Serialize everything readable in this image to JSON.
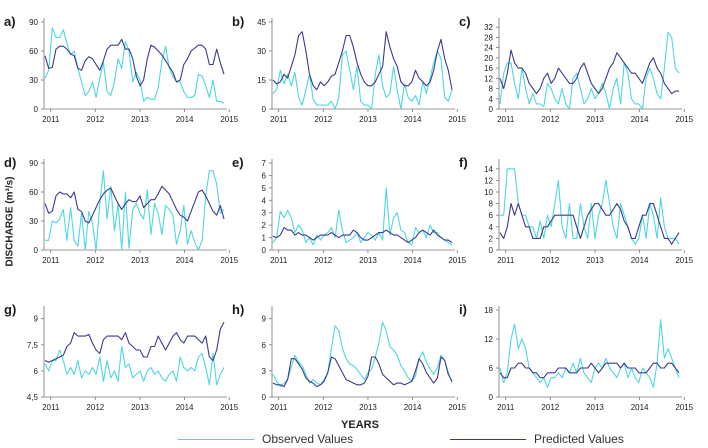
{
  "figure": {
    "ylabel": "DISCHARGE (m³/s)",
    "xlabel": "YEARS",
    "legend": [
      {
        "label": "Observed Values",
        "color": "#4fd6e0"
      },
      {
        "label": "Predicted Values",
        "color": "#3b3a8f"
      }
    ]
  },
  "chart_data": [
    {
      "type": "line",
      "panel": "a)",
      "x_ticks": [
        "2011",
        "2012",
        "2013",
        "2014",
        "2015"
      ],
      "y_ticks": [
        "0",
        "30",
        "60",
        "90"
      ],
      "ylim": [
        0,
        90
      ],
      "series": [
        {
          "name": "Observed Values",
          "values": [
            32,
            40,
            84,
            74,
            74,
            82,
            68,
            56,
            60,
            42,
            28,
            14,
            18,
            28,
            12,
            32,
            48,
            18,
            14,
            28,
            52,
            42,
            70,
            60,
            28,
            38,
            30,
            8,
            12,
            10,
            10,
            22,
            50,
            65,
            42,
            34,
            28,
            28,
            18,
            12,
            12,
            14,
            36,
            34,
            24,
            12,
            30,
            8,
            8,
            6
          ]
        },
        {
          "name": "Predicted Values",
          "values": [
            55,
            42,
            43,
            62,
            65,
            65,
            62,
            57,
            55,
            42,
            40,
            50,
            54,
            52,
            46,
            40,
            50,
            62,
            66,
            66,
            66,
            72,
            62,
            62,
            52,
            34,
            24,
            30,
            52,
            66,
            64,
            60,
            56,
            50,
            44,
            38,
            28,
            30,
            46,
            52,
            60,
            63,
            66,
            66,
            62,
            46,
            46,
            62,
            48,
            36
          ]
        }
      ]
    },
    {
      "type": "line",
      "panel": "b)",
      "x_ticks": [
        "2011",
        "2012",
        "2013",
        "2014",
        "2015"
      ],
      "y_ticks": [
        "0",
        "15",
        "30",
        "45"
      ],
      "ylim": [
        0,
        45
      ],
      "series": [
        {
          "name": "Observed Values",
          "values": [
            8,
            10,
            20,
            13,
            18,
            12,
            19,
            6,
            2,
            10,
            18,
            5,
            2,
            2,
            2,
            2,
            4,
            0,
            6,
            28,
            30,
            20,
            10,
            22,
            4,
            2,
            2,
            0,
            18,
            28,
            12,
            6,
            8,
            22,
            10,
            0,
            13,
            6,
            4,
            7,
            2,
            14,
            8,
            16,
            24,
            30,
            26,
            6,
            4,
            10
          ]
        },
        {
          "name": "Predicted Values",
          "values": [
            15,
            13,
            14,
            18,
            16,
            22,
            28,
            38,
            40,
            30,
            18,
            12,
            10,
            14,
            12,
            14,
            17,
            18,
            24,
            30,
            38,
            38,
            32,
            24,
            18,
            14,
            12,
            12,
            14,
            18,
            22,
            40,
            32,
            26,
            22,
            14,
            12,
            12,
            14,
            20,
            16,
            14,
            12,
            14,
            20,
            30,
            36,
            26,
            20,
            10
          ]
        }
      ]
    },
    {
      "type": "line",
      "panel": "c)",
      "x_ticks": [
        "2011",
        "2012",
        "2013",
        "2014",
        "2015"
      ],
      "y_ticks": [
        "0",
        "4",
        "8",
        "12",
        "16",
        "20",
        "24",
        "28",
        "32"
      ],
      "ylim": [
        0,
        34
      ],
      "series": [
        {
          "name": "Observed Values",
          "values": [
            2,
            14,
            18,
            18,
            10,
            4,
            16,
            8,
            2,
            6,
            2,
            2,
            1,
            10,
            8,
            4,
            2,
            8,
            2,
            0,
            12,
            14,
            8,
            2,
            4,
            8,
            4,
            6,
            10,
            6,
            0,
            8,
            12,
            2,
            18,
            14,
            4,
            2,
            2,
            0,
            12,
            16,
            12,
            6,
            4,
            16,
            30,
            28,
            16,
            14
          ]
        },
        {
          "name": "Predicted Values",
          "values": [
            12,
            8,
            14,
            23,
            18,
            16,
            16,
            14,
            10,
            8,
            6,
            8,
            12,
            14,
            10,
            12,
            16,
            14,
            12,
            10,
            10,
            12,
            16,
            18,
            14,
            10,
            8,
            6,
            8,
            12,
            16,
            18,
            22,
            20,
            18,
            16,
            14,
            14,
            12,
            10,
            14,
            18,
            20,
            16,
            14,
            10,
            8,
            6,
            7,
            7
          ]
        }
      ]
    },
    {
      "type": "line",
      "panel": "d)",
      "x_ticks": [
        "2011",
        "2012",
        "2013",
        "2014",
        "2015"
      ],
      "y_ticks": [
        "0",
        "30",
        "60",
        "90"
      ],
      "ylim": [
        0,
        90
      ],
      "series": [
        {
          "name": "Observed Values",
          "values": [
            10,
            10,
            30,
            28,
            32,
            42,
            10,
            44,
            10,
            4,
            38,
            0,
            40,
            28,
            0,
            48,
            82,
            32,
            66,
            20,
            48,
            0,
            60,
            2,
            42,
            48,
            38,
            32,
            62,
            16,
            48,
            38,
            16,
            46,
            42,
            36,
            6,
            20,
            46,
            6,
            20,
            8,
            0,
            10,
            56,
            82,
            82,
            68,
            38,
            42
          ]
        },
        {
          "name": "Predicted Values",
          "values": [
            48,
            38,
            40,
            56,
            60,
            58,
            58,
            54,
            60,
            42,
            40,
            30,
            28,
            36,
            44,
            52,
            58,
            62,
            64,
            56,
            48,
            42,
            48,
            52,
            50,
            50,
            56,
            44,
            48,
            52,
            52,
            58,
            66,
            62,
            58,
            50,
            42,
            36,
            34,
            30,
            40,
            50,
            60,
            62,
            56,
            48,
            40,
            36,
            46,
            32
          ]
        }
      ]
    },
    {
      "type": "line",
      "panel": "e)",
      "x_ticks": [
        "2011",
        "2012",
        "2013",
        "2014",
        "2015"
      ],
      "y_ticks": [
        "0",
        "1",
        "2",
        "3",
        "4",
        "5",
        "6",
        "7"
      ],
      "ylim": [
        0,
        7
      ],
      "series": [
        {
          "name": "Observed Values",
          "values": [
            0.6,
            1.0,
            3.1,
            2.6,
            3.2,
            2.6,
            1.4,
            2.0,
            1.6,
            0.6,
            1.0,
            0.4,
            1.2,
            0.8,
            1.2,
            1.4,
            1.8,
            1.0,
            3.2,
            1.6,
            0.6,
            0.8,
            1.0,
            1.4,
            0.6,
            1.0,
            1.4,
            1.2,
            0.8,
            1.4,
            0.8,
            5.0,
            1.2,
            2.6,
            3.0,
            1.6,
            1.4,
            0.6,
            0.4,
            1.8,
            1.4,
            1.6,
            1.0,
            2.0,
            1.4,
            1.4,
            1.0,
            0.8,
            0.6,
            0.4
          ]
        },
        {
          "name": "Predicted Values",
          "values": [
            1.1,
            1.0,
            1.2,
            1.8,
            1.6,
            1.6,
            1.2,
            1.4,
            1.2,
            1.2,
            1.0,
            0.8,
            1.0,
            1.2,
            1.2,
            1.2,
            1.4,
            1.2,
            1.0,
            1.2,
            1.2,
            1.2,
            1.6,
            1.4,
            1.0,
            0.8,
            0.8,
            1.0,
            1.2,
            1.4,
            1.4,
            1.6,
            1.4,
            1.2,
            1.2,
            1.0,
            0.8,
            0.6,
            0.8,
            1.0,
            1.4,
            1.6,
            1.4,
            1.2,
            1.6,
            1.2,
            1.0,
            0.8,
            0.8,
            0.6
          ]
        }
      ]
    },
    {
      "type": "line",
      "panel": "f)",
      "x_ticks": [
        "2011",
        "2012",
        "2013",
        "2014",
        "2015"
      ],
      "y_ticks": [
        "0",
        "2",
        "4",
        "6",
        "8",
        "10",
        "12",
        "14"
      ],
      "ylim": [
        0,
        15
      ],
      "series": [
        {
          "name": "Observed Values",
          "values": [
            6,
            6,
            14,
            14,
            14,
            8,
            6,
            6,
            4,
            4,
            2,
            5,
            2,
            6,
            4,
            8,
            12,
            4,
            2,
            8,
            2,
            2,
            8,
            4,
            2,
            8,
            2,
            6,
            8,
            12,
            8,
            4,
            2,
            8,
            6,
            4,
            2,
            1,
            2,
            6,
            2,
            8,
            6,
            2,
            9,
            4,
            2,
            2,
            2,
            1
          ]
        },
        {
          "name": "Predicted Values",
          "values": [
            3,
            2,
            4,
            8,
            6,
            8,
            6,
            4,
            4,
            2,
            2,
            2,
            4,
            4,
            5,
            6,
            6,
            6,
            6,
            6,
            6,
            4,
            2,
            4,
            6,
            7,
            8,
            8,
            7,
            6,
            6,
            7,
            8,
            7,
            5,
            4,
            2,
            2,
            4,
            6,
            6,
            8,
            8,
            6,
            4,
            2,
            2,
            1,
            2,
            3
          ]
        }
      ]
    },
    {
      "type": "line",
      "panel": "g)",
      "x_ticks": [
        "2011",
        "2012",
        "2013",
        "2014",
        "2015"
      ],
      "y_ticks": [
        "4,5",
        "6",
        "7,5",
        "9"
      ],
      "ylim": [
        4.5,
        9.5
      ],
      "series": [
        {
          "name": "Observed Values",
          "values": [
            6.4,
            6.0,
            6.6,
            6.6,
            7.2,
            6.6,
            5.8,
            6.2,
            5.8,
            6.6,
            5.6,
            6.0,
            5.8,
            6.2,
            5.8,
            6.8,
            5.4,
            6.6,
            5.6,
            6.0,
            5.4,
            7.4,
            6.2,
            6.4,
            5.6,
            5.8,
            6.0,
            5.4,
            6.0,
            6.2,
            5.8,
            6.0,
            5.6,
            5.4,
            5.8,
            6.0,
            5.4,
            6.8,
            6.2,
            6.0,
            6.2,
            6.0,
            6.8,
            7.0,
            6.2,
            5.2,
            7.0,
            5.2,
            5.8,
            6.2
          ]
        },
        {
          "name": "Predicted Values",
          "values": [
            6.6,
            6.5,
            6.6,
            6.7,
            6.8,
            6.9,
            7.4,
            7.6,
            8.2,
            8.0,
            8.0,
            8.0,
            8.1,
            7.6,
            7.2,
            7.0,
            7.8,
            8.0,
            8.0,
            8.0,
            8.0,
            7.8,
            8.2,
            7.6,
            7.4,
            7.2,
            7.2,
            6.8,
            6.8,
            7.4,
            7.4,
            8.0,
            7.6,
            7.2,
            7.6,
            8.0,
            8.2,
            7.8,
            7.6,
            8.0,
            8.0,
            8.0,
            7.8,
            7.6,
            8.0,
            6.8,
            6.6,
            7.2,
            8.4,
            8.8
          ]
        }
      ]
    },
    {
      "type": "line",
      "panel": "h)",
      "x_ticks": [
        "2011",
        "2012",
        "2013",
        "2014",
        "2015"
      ],
      "y_ticks": [
        "0",
        "3",
        "6",
        "9"
      ],
      "ylim": [
        0,
        10
      ],
      "series": [
        {
          "name": "Observed Values",
          "values": [
            2.6,
            1.8,
            1.2,
            1.6,
            2.0,
            3.4,
            4.8,
            4.0,
            3.6,
            2.6,
            1.6,
            2.0,
            1.6,
            1.4,
            2.0,
            2.8,
            5.6,
            8.2,
            7.6,
            5.6,
            4.4,
            3.8,
            3.6,
            3.2,
            2.6,
            2.0,
            2.8,
            3.2,
            4.6,
            6.2,
            8.6,
            7.6,
            5.8,
            5.4,
            4.8,
            3.6,
            3.0,
            2.2,
            1.8,
            2.4,
            4.4,
            5.2,
            4.0,
            3.2,
            2.6,
            3.4,
            4.8,
            4.2,
            2.8,
            1.6
          ]
        },
        {
          "name": "Predicted Values",
          "values": [
            1.6,
            1.4,
            1.4,
            1.2,
            2.0,
            4.4,
            4.4,
            3.8,
            3.2,
            2.2,
            1.8,
            1.6,
            1.2,
            1.4,
            1.8,
            2.8,
            4.6,
            4.4,
            3.6,
            2.8,
            2.0,
            1.8,
            1.6,
            1.4,
            1.4,
            1.6,
            2.4,
            4.6,
            4.6,
            3.8,
            2.6,
            2.2,
            1.8,
            1.4,
            1.6,
            1.6,
            1.4,
            1.6,
            1.8,
            3.0,
            4.4,
            3.8,
            2.8,
            2.2,
            1.6,
            2.2,
            4.6,
            4.2,
            2.6,
            1.8
          ]
        }
      ]
    },
    {
      "type": "line",
      "panel": "i)",
      "x_ticks": [
        "2011",
        "2012",
        "2013",
        "2014",
        "2015"
      ],
      "y_ticks": [
        "0",
        "6",
        "12",
        "18"
      ],
      "ylim": [
        0,
        18
      ],
      "series": [
        {
          "name": "Observed Values",
          "values": [
            6,
            3,
            5,
            12,
            15,
            10,
            12,
            10,
            6,
            5,
            4,
            3,
            4,
            2,
            4,
            4,
            5,
            4,
            6,
            5,
            7,
            5,
            8,
            5,
            4,
            3,
            6,
            7,
            6,
            8,
            6,
            5,
            4,
            6,
            7,
            4,
            6,
            4,
            3,
            6,
            5,
            4,
            2,
            7,
            16,
            8,
            10,
            8,
            6,
            4
          ]
        },
        {
          "name": "Predicted Values",
          "values": [
            5,
            4,
            4,
            6,
            6,
            7,
            7,
            6,
            6,
            5,
            5,
            4,
            4,
            5,
            5,
            5,
            6,
            6,
            6,
            5,
            5,
            5,
            6,
            6,
            6,
            7,
            6,
            5,
            6,
            7,
            7,
            7,
            7,
            6,
            7,
            6,
            6,
            6,
            5,
            5,
            5,
            6,
            7,
            7,
            6,
            6,
            7,
            7,
            6,
            5
          ]
        }
      ]
    }
  ]
}
